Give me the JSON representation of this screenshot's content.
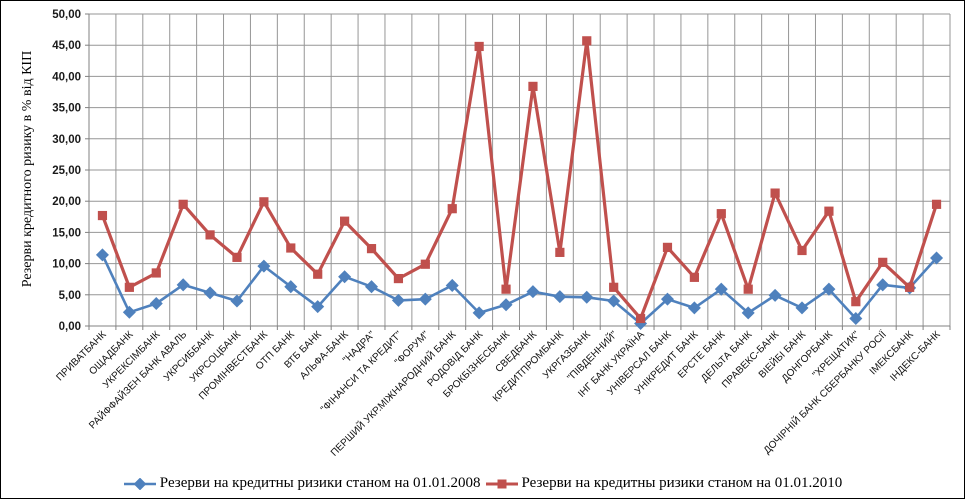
{
  "chart": {
    "y_axis_title": "Резерви кредитного ризику в % від КІП",
    "background": "#ffffff",
    "border_color": "#000000",
    "gridline_color": "#969696",
    "axis_color": "#808080",
    "tick_label_color": "#1a1a1a"
  },
  "chart_data": {
    "type": "line",
    "title": "",
    "xlabel": "",
    "ylabel": "Резерви кредитного ризику в % від КІП",
    "ylim": [
      0,
      50
    ],
    "ytick_step": 5,
    "ytick_labels": [
      "0,00",
      "5,00",
      "10,00",
      "15,00",
      "20,00",
      "25,00",
      "30,00",
      "35,00",
      "40,00",
      "45,00",
      "50,00"
    ],
    "grid": true,
    "legend_position": "bottom",
    "categories": [
      "ПРИВАТБАНК",
      "ОЩАДБАНК",
      "УКРЕКСІМБАНК",
      "РАЙФФАЙЗЕН БАНК АВАЛЬ",
      "УКРСИББАНК",
      "УКРСОЦБАНК",
      "ПРОМІНВЕСТБАНК",
      "ОТП БАНК",
      "ВТБ БАНК",
      "АЛЬФА-БАНК",
      "\"НАДРА\"",
      "\"ФІНАНСИ ТА КРЕДИТ\"",
      "\"ФОРУМ\"",
      "ПЕРШИЙ УКР.МІЖНАРОДНИЙ  БАНК",
      "РОДОВІД БАНК",
      "БРОКБІЗНЕСБАНК",
      "СВЕДБАНК",
      "КРЕДИТПРОМБАНК",
      "УКРГАЗБАНК",
      "\"ПІВДЕННИЙ\"",
      "ІНГ БАНК УКРАЇНА",
      "УНІВЕРСАЛ БАНК",
      "УНІКРЕДИТ БАНК",
      "ЕРСТЕ БАНК",
      "ДЕЛЬТА БАНК",
      "ПРАВЕКС-БАНК",
      "ВІЕЙБІ БАНК",
      "ДОНГОРБАНК",
      "\"ХРЕЩАТИК\"",
      "ДОЧІРНІЙ БАНК СБЕРБАНКУ РОСІЇ",
      "ІМЕКСБАНК",
      "ІНДЕКС-БАНК"
    ],
    "series": [
      {
        "name": "Резерви на кредитны ризики станом на 01.01.2008",
        "color": "#4F81BD",
        "marker": "diamond",
        "values": [
          11.4,
          2.2,
          3.6,
          6.6,
          5.3,
          4.0,
          9.6,
          6.3,
          3.1,
          7.9,
          6.3,
          4.1,
          4.3,
          6.5,
          2.1,
          3.4,
          5.5,
          4.7,
          4.6,
          4.0,
          0.4,
          4.3,
          2.9,
          5.9,
          2.1,
          4.9,
          2.9,
          5.9,
          1.2,
          6.6,
          6.1,
          10.9
        ]
      },
      {
        "name": "Резерви на кредитны ризики станом на 01.01.2010",
        "color": "#C0504D",
        "marker": "square",
        "values": [
          17.7,
          6.2,
          8.5,
          19.5,
          14.6,
          11.0,
          19.9,
          12.5,
          8.3,
          16.8,
          12.4,
          7.6,
          9.9,
          18.8,
          44.8,
          5.9,
          38.4,
          11.8,
          45.7,
          6.2,
          1.2,
          12.6,
          7.8,
          18.0,
          5.9,
          21.3,
          12.1,
          18.4,
          3.9,
          10.2,
          6.2,
          19.5
        ]
      }
    ]
  }
}
